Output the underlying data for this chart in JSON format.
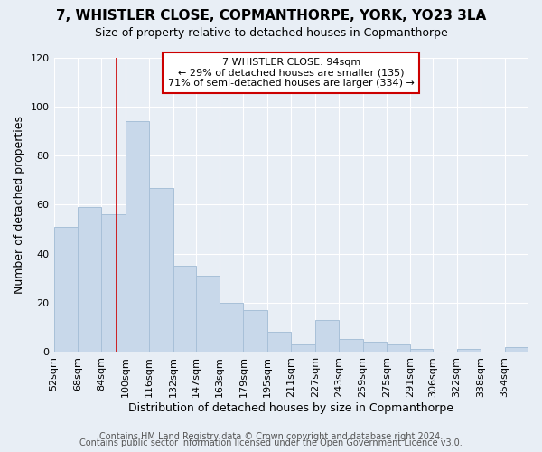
{
  "title": "7, WHISTLER CLOSE, COPMANTHORPE, YORK, YO23 3LA",
  "subtitle": "Size of property relative to detached houses in Copmanthorpe",
  "xlabel": "Distribution of detached houses by size in Copmanthorpe",
  "ylabel": "Number of detached properties",
  "bar_color": "#c8d8ea",
  "bar_edge_color": "#a8c0d8",
  "background_color": "#e8eef5",
  "grid_color": "#ffffff",
  "vline_x": 94,
  "vline_color": "#cc0000",
  "annotation_text": "7 WHISTLER CLOSE: 94sqm\n← 29% of detached houses are smaller (135)\n71% of semi-detached houses are larger (334) →",
  "annotation_box_color": "#ffffff",
  "annotation_box_edge": "#cc0000",
  "bins": [
    52,
    68,
    84,
    100,
    116,
    132,
    147,
    163,
    179,
    195,
    211,
    227,
    243,
    259,
    275,
    291,
    306,
    322,
    338,
    354,
    370
  ],
  "heights": [
    51,
    59,
    56,
    94,
    67,
    35,
    31,
    20,
    17,
    8,
    3,
    13,
    5,
    4,
    3,
    1,
    0,
    1,
    0,
    2
  ],
  "ylim": [
    0,
    120
  ],
  "yticks": [
    0,
    20,
    40,
    60,
    80,
    100,
    120
  ],
  "footer_line1": "Contains HM Land Registry data © Crown copyright and database right 2024.",
  "footer_line2": "Contains public sector information licensed under the Open Government Licence v3.0.",
  "title_fontsize": 11,
  "subtitle_fontsize": 9,
  "axis_label_fontsize": 9,
  "tick_fontsize": 8,
  "annotation_fontsize": 8,
  "footer_fontsize": 7
}
